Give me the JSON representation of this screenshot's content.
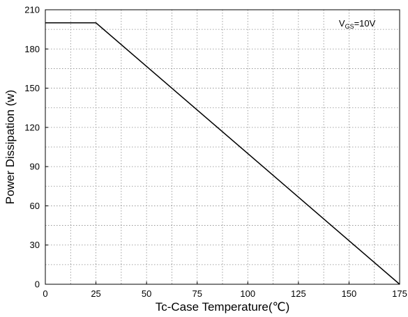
{
  "chart_data": {
    "type": "line",
    "xlabel": "Tc-Case Temperature(℃)",
    "ylabel": "Power Dissipation (w)",
    "xlim": [
      0,
      175
    ],
    "ylim": [
      0,
      210
    ],
    "x_ticks": [
      0,
      25,
      50,
      75,
      100,
      125,
      150,
      175
    ],
    "y_ticks": [
      0,
      30,
      60,
      90,
      120,
      150,
      180,
      210
    ],
    "x_tick_labels": [
      "0",
      "25",
      "50",
      "75",
      "100",
      "125",
      "150",
      "175"
    ],
    "y_tick_labels": [
      "0",
      "30",
      "60",
      "90",
      "120",
      "150",
      "180",
      "210"
    ],
    "grid": true,
    "grid_style": "dotted",
    "series": [
      {
        "x": [
          0,
          25,
          175
        ],
        "y": [
          200,
          200,
          0
        ],
        "color": "#000000"
      }
    ],
    "annotation": {
      "base": "V",
      "subscript": "GS",
      "rest": "=10V",
      "x": 145,
      "y": 200
    }
  }
}
